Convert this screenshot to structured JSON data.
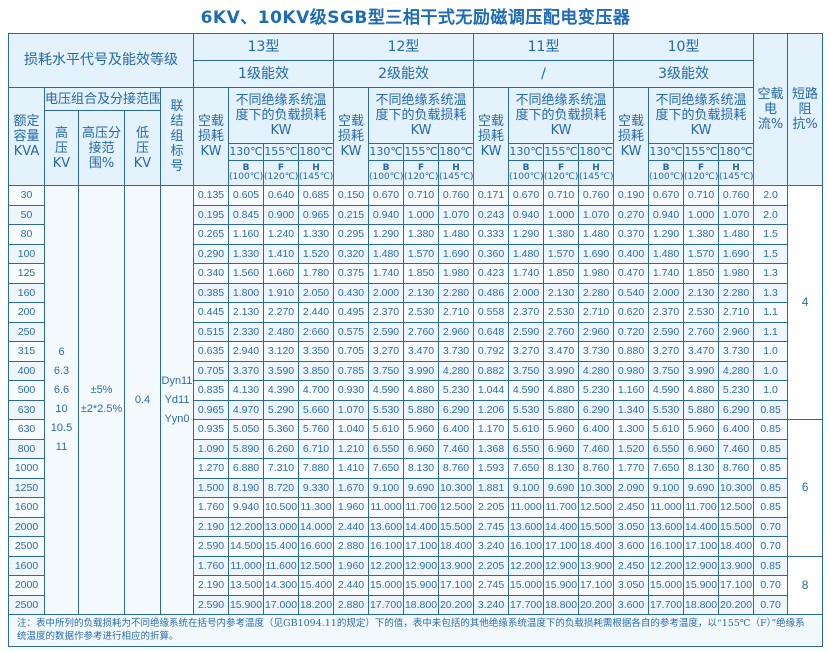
{
  "title": "6KV、10KV级SGB型三相干式无励磁调压配电变压器",
  "header": {
    "loss_level": "损耗水平代号及能效等级",
    "voltage_group": "电压组合及分接范围",
    "rated_capacity": "额定容量KVA",
    "hv": "高压KV",
    "hv_tap": "高压分接范围%",
    "lv": "低压KV",
    "connection": "联结组标号",
    "no_load_loss": "空载损耗KW",
    "load_loss": "不同绝缘系统温度下的负载损耗KW",
    "temps": [
      "130℃",
      "155℃",
      "180℃"
    ],
    "classes": [
      {
        "cls": "B",
        "ref": "(100℃)"
      },
      {
        "cls": "F",
        "ref": "(120℃)"
      },
      {
        "cls": "H",
        "ref": "(145℃)"
      }
    ],
    "no_load_current": "空载电流%",
    "impedance": "短路阻抗%"
  },
  "types": [
    {
      "name": "13型",
      "grade": "1级能效"
    },
    {
      "name": "12型",
      "grade": "2级能效"
    },
    {
      "name": "11型",
      "grade": "/"
    },
    {
      "name": "10型",
      "grade": "3级能效"
    }
  ],
  "merged": {
    "hv_values": [
      "6",
      "6.3",
      "6.6",
      "10",
      "10.5",
      "11"
    ],
    "tap_values": [
      "±5%",
      "±2*2.5%"
    ],
    "lv_value": "0.4",
    "connection_values": [
      "Dyn11",
      "Yd11",
      "Yyn0"
    ]
  },
  "impedance_groups": [
    {
      "value": "4",
      "rows": 12
    },
    {
      "value": "6",
      "rows": 7
    },
    {
      "value": "8",
      "rows": 3
    }
  ],
  "rows": [
    [
      "30",
      "0.135",
      "0.605",
      "0.640",
      "0.685",
      "0.150",
      "0.670",
      "0.710",
      "0.760",
      "0.171",
      "0.670",
      "0.710",
      "0.760",
      "0.190",
      "0.670",
      "0.710",
      "0.760",
      "2.0"
    ],
    [
      "50",
      "0.195",
      "0.845",
      "0.900",
      "0.965",
      "0.215",
      "0.940",
      "1.000",
      "1.070",
      "0.243",
      "0.940",
      "1.000",
      "1.070",
      "0.270",
      "0.940",
      "1.000",
      "1.070",
      "2.0"
    ],
    [
      "80",
      "0.265",
      "1.160",
      "1.240",
      "1.330",
      "0.295",
      "1.290",
      "1.380",
      "1.480",
      "0.333",
      "1.290",
      "1.380",
      "1.480",
      "0.370",
      "1.290",
      "1.380",
      "1.480",
      "1.5"
    ],
    [
      "100",
      "0.290",
      "1.330",
      "1.410",
      "1.520",
      "0.320",
      "1.480",
      "1.570",
      "1.690",
      "0.360",
      "1.480",
      "1.570",
      "1.690",
      "0.400",
      "1.480",
      "1.570",
      "1.690",
      "1.5"
    ],
    [
      "125",
      "0.340",
      "1.560",
      "1.660",
      "1.780",
      "0.375",
      "1.740",
      "1.850",
      "1.980",
      "0.423",
      "1.740",
      "1.850",
      "1.980",
      "0.470",
      "1.740",
      "1.850",
      "1.980",
      "1.3"
    ],
    [
      "160",
      "0.385",
      "1.800",
      "1.910",
      "2.050",
      "0.430",
      "2.000",
      "2.130",
      "2.280",
      "0.486",
      "2.000",
      "2.130",
      "2.280",
      "0.540",
      "2.000",
      "2.130",
      "2.280",
      "1.3"
    ],
    [
      "200",
      "0.445",
      "2.130",
      "2.270",
      "2.440",
      "0.495",
      "2.370",
      "2.530",
      "2.710",
      "0.558",
      "2.370",
      "2.530",
      "2.710",
      "0.620",
      "2.370",
      "2.530",
      "2.710",
      "1.1"
    ],
    [
      "250",
      "0.515",
      "2.330",
      "2.480",
      "2.660",
      "0.575",
      "2.590",
      "2.760",
      "2.960",
      "0.648",
      "2.590",
      "2.760",
      "2.960",
      "0.720",
      "2.590",
      "2.760",
      "2.960",
      "1.1"
    ],
    [
      "315",
      "0.635",
      "2.940",
      "3.120",
      "3.350",
      "0.705",
      "3.270",
      "3.470",
      "3.730",
      "0.792",
      "3.270",
      "3.470",
      "3.730",
      "0.880",
      "3.270",
      "3.470",
      "3.730",
      "1.0"
    ],
    [
      "400",
      "0.705",
      "3.370",
      "3.590",
      "3.850",
      "0.785",
      "3.750",
      "3.990",
      "4.280",
      "0.882",
      "3.750",
      "3.990",
      "4.280",
      "0.980",
      "3.750",
      "3.990",
      "4.280",
      "1.0"
    ],
    [
      "500",
      "0.835",
      "4.130",
      "4.390",
      "4.700",
      "0.930",
      "4.590",
      "4.880",
      "5.230",
      "1.044",
      "4.590",
      "4.880",
      "5.230",
      "1.160",
      "4.590",
      "4.880",
      "5.230",
      "1.0"
    ],
    [
      "630",
      "0.965",
      "4.970",
      "5.290",
      "5.660",
      "1.070",
      "5.530",
      "5.880",
      "6.290",
      "1.206",
      "5.530",
      "5.880",
      "6.290",
      "1.340",
      "5.530",
      "5.880",
      "6.290",
      "0.85"
    ],
    [
      "630",
      "0.935",
      "5.050",
      "5.360",
      "5.760",
      "1.040",
      "5.610",
      "5.960",
      "6.400",
      "1.170",
      "5.610",
      "5.960",
      "6.400",
      "1.300",
      "5.610",
      "5.960",
      "6.400",
      "0.85"
    ],
    [
      "800",
      "1.090",
      "5.890",
      "6.260",
      "6.710",
      "1.210",
      "6.550",
      "6.960",
      "7.460",
      "1.368",
      "6.550",
      "6.960",
      "7.460",
      "1.520",
      "6.550",
      "6.960",
      "7.460",
      "0.85"
    ],
    [
      "1000",
      "1.270",
      "6.880",
      "7.310",
      "7.880",
      "1.410",
      "7.650",
      "8.130",
      "8.760",
      "1.593",
      "7.650",
      "8.130",
      "8.760",
      "1.770",
      "7.650",
      "8.130",
      "8.760",
      "0.85"
    ],
    [
      "1250",
      "1.500",
      "8.190",
      "8.720",
      "9.330",
      "1.670",
      "9.100",
      "9.690",
      "10.300",
      "1.881",
      "9.100",
      "9.690",
      "10.300",
      "2.090",
      "9.100",
      "9.690",
      "10.300",
      "0.85"
    ],
    [
      "1600",
      "1.760",
      "9.940",
      "10.500",
      "11.300",
      "1.960",
      "11.000",
      "11.700",
      "12.500",
      "2.205",
      "11.000",
      "11.700",
      "12.500",
      "2.450",
      "11.000",
      "11.700",
      "12.500",
      "0.85"
    ],
    [
      "2000",
      "2.190",
      "12.200",
      "13.000",
      "14.000",
      "2.440",
      "13.600",
      "14.400",
      "15.500",
      "2.745",
      "13.600",
      "14.400",
      "15.500",
      "3.050",
      "13.600",
      "14.400",
      "15.500",
      "0.70"
    ],
    [
      "2500",
      "2.590",
      "14.500",
      "15.400",
      "16.600",
      "2.880",
      "16.100",
      "17.100",
      "18.400",
      "3.240",
      "16.100",
      "17.100",
      "18.400",
      "3.600",
      "16.100",
      "17.100",
      "18.400",
      "0.70"
    ],
    [
      "1600",
      "1.760",
      "11.000",
      "11.600",
      "12.500",
      "1.960",
      "12.200",
      "12.900",
      "13.900",
      "2.205",
      "12.200",
      "12.900",
      "13.900",
      "2.450",
      "12.200",
      "12.900",
      "13.900",
      "0.85"
    ],
    [
      "2000",
      "2.190",
      "13.500",
      "14.300",
      "15.400",
      "2.440",
      "15.000",
      "15.900",
      "17.100",
      "2.745",
      "15.000",
      "15.900",
      "17.100",
      "3.050",
      "15.000",
      "15.900",
      "17.100",
      "0.70"
    ],
    [
      "2500",
      "2.590",
      "15.900",
      "17.000",
      "18.200",
      "2.880",
      "17.700",
      "18.800",
      "20.200",
      "3.240",
      "17.700",
      "18.800",
      "20.200",
      "3.600",
      "17.700",
      "18.800",
      "20.200",
      "0.70"
    ]
  ],
  "note": "注：表中所列的负载损耗为不同绝缘系统在括号内参考温度（见GB1094.11的规定）下的值，表中未包括的其他绝缘系统温度下的负载损耗需根据各自的参考温度，以“155℃（F）”绝缘系统温度的数据作参考进行相应的折算。"
}
